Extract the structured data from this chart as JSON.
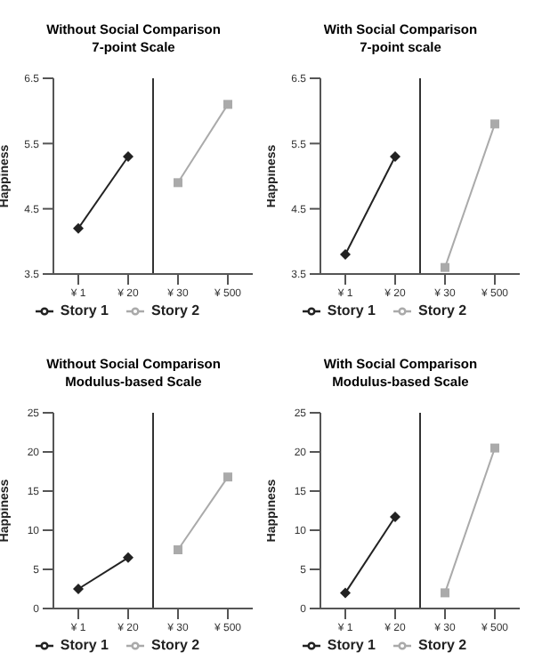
{
  "chart_data": [
    {
      "type": "line",
      "title": "Without Social Comparison",
      "subtitle": "7-point Scale",
      "ylabel": "Happiness",
      "categories": [
        "¥ 1",
        "¥ 20",
        "¥ 30",
        "¥ 500"
      ],
      "ylim": [
        3.5,
        6.5
      ],
      "yticks": [
        3.5,
        4.5,
        5.5,
        6.5
      ],
      "legend": "bottom",
      "series": [
        {
          "name": "Story 1",
          "color": "#222222",
          "marker": "diamond",
          "values": [
            4.2,
            5.3,
            null,
            null
          ]
        },
        {
          "name": "Story 2",
          "color": "#aaaaaa",
          "marker": "square",
          "values": [
            null,
            null,
            4.9,
            6.1
          ]
        }
      ]
    },
    {
      "type": "line",
      "title": "With Social Comparison",
      "subtitle": "7-point scale",
      "ylabel": "Happiness",
      "categories": [
        "¥ 1",
        "¥ 20",
        "¥ 30",
        "¥ 500"
      ],
      "ylim": [
        3.5,
        6.5
      ],
      "yticks": [
        3.5,
        4.5,
        5.5,
        6.5
      ],
      "legend": "bottom",
      "series": [
        {
          "name": "Story 1",
          "color": "#222222",
          "marker": "diamond",
          "values": [
            3.8,
            5.3,
            null,
            null
          ]
        },
        {
          "name": "Story 2",
          "color": "#aaaaaa",
          "marker": "square",
          "values": [
            null,
            null,
            3.6,
            5.8
          ]
        }
      ]
    },
    {
      "type": "line",
      "title": "Without Social Comparison",
      "subtitle": "Modulus-based Scale",
      "ylabel": "Happiness",
      "categories": [
        "¥ 1",
        "¥ 20",
        "¥ 30",
        "¥ 500"
      ],
      "ylim": [
        0,
        25
      ],
      "yticks": [
        0,
        5,
        10,
        15,
        20,
        25
      ],
      "legend": "bottom",
      "series": [
        {
          "name": "Story 1",
          "color": "#222222",
          "marker": "diamond",
          "values": [
            2.5,
            6.5,
            null,
            null
          ]
        },
        {
          "name": "Story 2",
          "color": "#aaaaaa",
          "marker": "square",
          "values": [
            null,
            null,
            7.5,
            16.8
          ]
        }
      ]
    },
    {
      "type": "line",
      "title": "With Social Comparison",
      "subtitle": "Modulus-based Scale",
      "ylabel": "Happiness",
      "categories": [
        "¥ 1",
        "¥ 20",
        "¥ 30",
        "¥ 500"
      ],
      "ylim": [
        0,
        25
      ],
      "yticks": [
        0,
        5,
        10,
        15,
        20,
        25
      ],
      "legend": "bottom",
      "series": [
        {
          "name": "Story 1",
          "color": "#222222",
          "marker": "diamond",
          "values": [
            2,
            11.7,
            null,
            null
          ]
        },
        {
          "name": "Story 2",
          "color": "#aaaaaa",
          "marker": "square",
          "values": [
            null,
            null,
            2,
            20.5
          ]
        }
      ]
    }
  ]
}
